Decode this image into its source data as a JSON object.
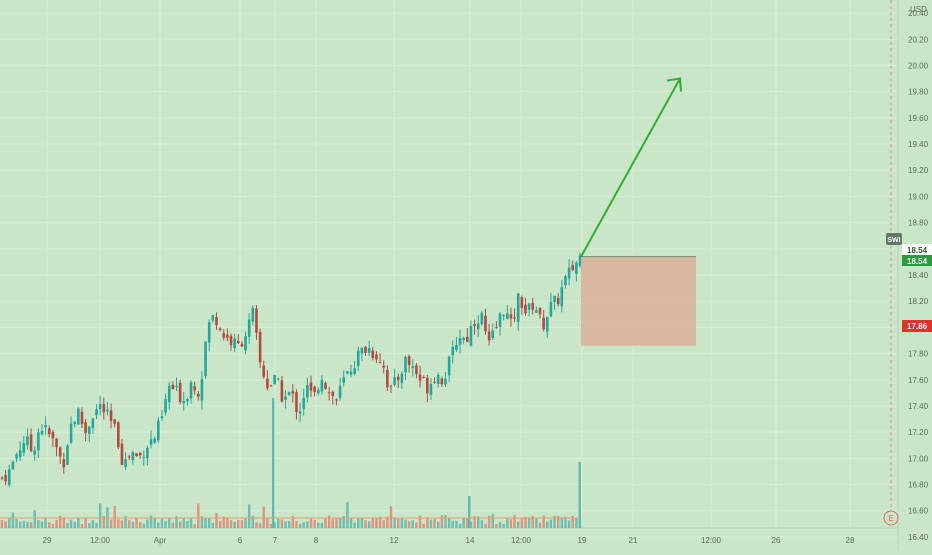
{
  "currency": "USD",
  "colors": {
    "background": "#c9e6c8",
    "grid": "#d9eed8",
    "up": "#26a69a",
    "down": "#b24a3f",
    "target_arrow": "#2fae2f",
    "stop_zone": "#d9b39b",
    "axis_text": "#5b6b5b",
    "current_price_bg": "#2e9a3f",
    "stop_price_bg": "#e0322c",
    "symbol_badge_bg": "#5f7a66",
    "volume_ma": "#f09a6a"
  },
  "symbol_badge": "SWI",
  "earnings_marker": "E",
  "price_labels": {
    "current": "18.54",
    "stop": "17.86"
  },
  "chart_data": {
    "type": "candlestick",
    "ylim": [
      16.3,
      20.5
    ],
    "y_ticks": [
      "20.40",
      "20.20",
      "20.00",
      "19.80",
      "19.60",
      "19.40",
      "19.20",
      "19.00",
      "18.80",
      "18.60",
      "18.40",
      "18.20",
      "18.00",
      "17.80",
      "17.60",
      "17.40",
      "17.20",
      "17.00",
      "16.80",
      "16.60",
      "16.40"
    ],
    "x_ticks": [
      "29",
      "12:00",
      "Apr",
      "6",
      "7",
      "8",
      "12",
      "14",
      "12:00",
      "19",
      "21",
      "12:00",
      "26",
      "28"
    ],
    "close_path": [
      16.85,
      16.9,
      17.05,
      17.15,
      17.05,
      17.25,
      17.2,
      17.1,
      16.95,
      17.25,
      17.35,
      17.2,
      17.35,
      17.4,
      17.3,
      17.2,
      16.95,
      17.05,
      17.0,
      17.1,
      17.15,
      17.3,
      17.55,
      17.5,
      17.45,
      17.6,
      17.5,
      18.0,
      18.1,
      17.95,
      17.9,
      17.85,
      17.95,
      18.1,
      17.7,
      17.55,
      17.6,
      17.45,
      17.5,
      17.35,
      17.55,
      17.45,
      17.65,
      17.5,
      17.45,
      17.6,
      17.7,
      17.8,
      17.85,
      17.8,
      17.75,
      17.5,
      17.6,
      17.75,
      17.7,
      17.6,
      17.55,
      17.65,
      17.6,
      17.75,
      17.95,
      17.9,
      18.05,
      18.1,
      17.85,
      18.0,
      18.15,
      18.0,
      18.25,
      18.1,
      18.2,
      18.0,
      18.15,
      18.2,
      18.35,
      18.45,
      18.54
    ],
    "reference_lines": {
      "current_price": 18.54,
      "stop_loss": 17.86
    },
    "stop_zone": {
      "top": 18.54,
      "bottom": 17.86
    },
    "target_arrow": {
      "from": 18.54,
      "to": 19.9
    }
  }
}
